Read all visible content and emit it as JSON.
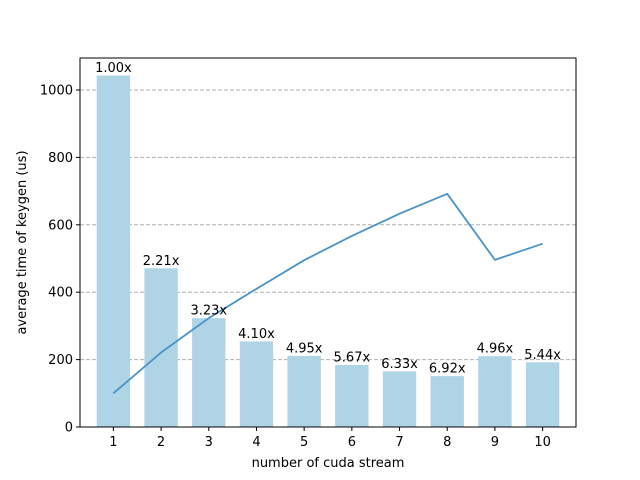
{
  "chart_data": {
    "type": "bar",
    "title": "",
    "xlabel": "number of cuda stream",
    "ylabel": "average time of keygen (us)",
    "categories": [
      "1",
      "2",
      "3",
      "4",
      "5",
      "6",
      "7",
      "8",
      "9",
      "10"
    ],
    "series": [
      {
        "type": "bar",
        "values": [
          1043,
          471,
          323,
          254,
          211,
          184,
          165,
          151,
          210,
          192
        ],
        "labels": [
          "1.00x",
          "2.21x",
          "3.23x",
          "4.10x",
          "4.95x",
          "5.67x",
          "6.33x",
          "6.92x",
          "4.96x",
          "5.44x"
        ]
      },
      {
        "type": "line",
        "values": [
          100,
          221,
          323,
          410,
          495,
          567,
          633,
          692,
          496,
          544
        ]
      }
    ],
    "ylim": [
      0,
      1095
    ],
    "yticks": [
      0,
      200,
      400,
      600,
      800,
      1000
    ],
    "grid": "y-dashed",
    "colors": {
      "bar": "#afd4e6",
      "line": "#4a93c6",
      "grid": "#b0b0b0"
    }
  }
}
